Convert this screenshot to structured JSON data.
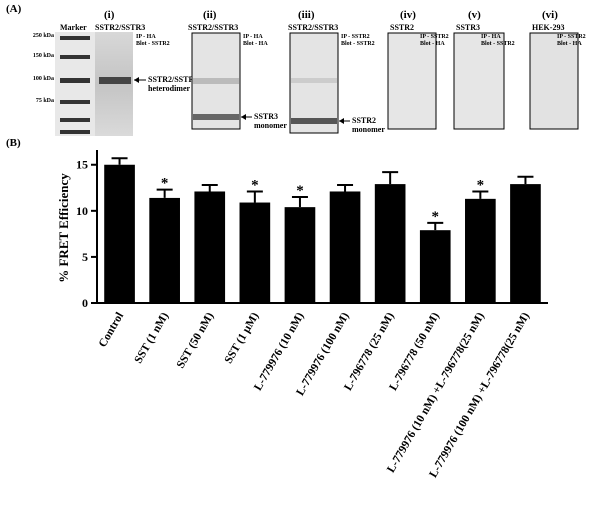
{
  "panel_a": {
    "label": "(A)",
    "marker": {
      "label": "Marker",
      "sizes": [
        "250 kDa",
        "150 kDa",
        "100 kDa",
        "75 kDa"
      ]
    },
    "panels": [
      {
        "numeral": "(i)",
        "header": "SSTR2/SSTR3",
        "ip": "IP - HA",
        "blot": "Blot - SSTR2",
        "arrow_label": [
          "SSTR2/SSTR3",
          "heterodimer"
        ]
      },
      {
        "numeral": "(ii)",
        "header": "SSTR2/SSTR3",
        "ip": "IP - HA",
        "blot": "Blot - HA",
        "arrow_label": [
          "SSTR3",
          "monomer"
        ]
      },
      {
        "numeral": "(iii)",
        "header": "SSTR2/SSTR3",
        "ip": "IP - SSTR2",
        "blot": "Blot - SSTR2",
        "arrow_label": [
          "SSTR2",
          "monomer"
        ]
      },
      {
        "numeral": "(iv)",
        "header": "SSTR2",
        "ip": "IP - SSTR2",
        "blot": "Blot - HA"
      },
      {
        "numeral": "(v)",
        "header": "SSTR3",
        "ip": "IP - HA",
        "blot": "Blot - SSTR2"
      },
      {
        "numeral": "(vi)",
        "header": "HEK-293",
        "ip": "IP - SSTR2",
        "blot": "Blot - HA"
      }
    ]
  },
  "chart_data": {
    "type": "bar",
    "panel_label": "(B)",
    "y_label": "% FRET Efficiency",
    "categories": [
      "Control",
      "SST (1 nM)",
      "SST (50 nM)",
      "SST (1 µM)",
      "L-779976 (10 nM)",
      "L-779976 (100 nM)",
      "L-796778 (25 nM)",
      "L-796778 (50 nM)",
      "L-779976 (10 nM) +L-796778(25 nM)",
      "L-779976 (100 nM) +L-796778(25 nM)"
    ],
    "values": [
      15.0,
      11.4,
      12.1,
      10.9,
      10.4,
      12.1,
      12.9,
      7.9,
      11.3,
      12.9
    ],
    "errors": [
      0.7,
      0.9,
      0.7,
      1.2,
      1.1,
      0.7,
      1.3,
      0.8,
      0.8,
      0.8
    ],
    "markers": [
      null,
      "*",
      null,
      "*",
      "*",
      null,
      null,
      "*",
      "*",
      null
    ],
    "color": "#000000",
    "ylim": [
      0,
      16.6
    ],
    "yticks": [
      0,
      5,
      10,
      15
    ]
  }
}
